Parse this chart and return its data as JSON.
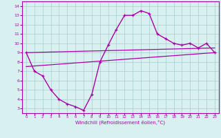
{
  "x": [
    0,
    1,
    2,
    3,
    4,
    5,
    6,
    7,
    8,
    9,
    10,
    11,
    12,
    13,
    14,
    15,
    16,
    17,
    18,
    19,
    20,
    21,
    22,
    23
  ],
  "y_curve": [
    9.0,
    7.0,
    6.5,
    5.0,
    4.0,
    3.5,
    3.2,
    2.8,
    4.5,
    8.0,
    9.8,
    11.5,
    13.0,
    13.0,
    13.5,
    13.2,
    11.0,
    10.5,
    10.0,
    9.8,
    10.0,
    9.5,
    10.0,
    9.0
  ],
  "y_line1_start": 9.0,
  "y_line1_end": 9.5,
  "y_line2_start": 7.5,
  "y_line2_end": 9.0,
  "line_color": "#AA00AA",
  "bg_color": "#D8F0F0",
  "grid_color": "#AACCCC",
  "ylabel_vals": [
    3,
    4,
    5,
    6,
    7,
    8,
    9,
    10,
    11,
    12,
    13,
    14
  ],
  "xlabel": "Windchill (Refroidissement éolien,°C)",
  "ylim": [
    2.5,
    14.5
  ],
  "xlim": [
    -0.5,
    23.5
  ],
  "x_start": 0,
  "x_end": 23
}
